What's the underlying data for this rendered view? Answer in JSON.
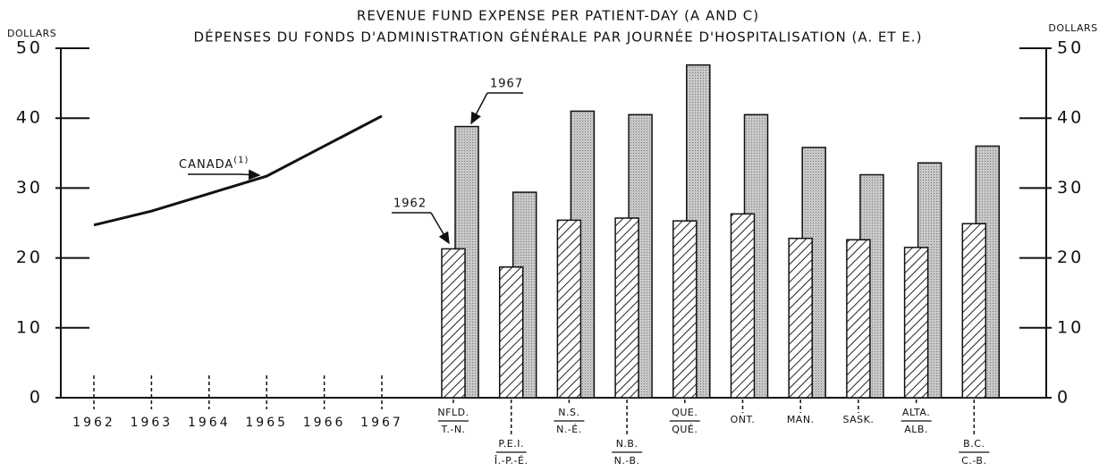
{
  "chart_data": [
    {
      "type": "line",
      "title": "REVENUE FUND EXPENSE PER PATIENT-DAY (A AND C)",
      "subtitle": "DÉPENSES DU FONDS D'ADMINISTRATION GÉNÉRALE PAR JOURNÉE D'HOSPITALISATION (A. ET E.)",
      "ylabel": "DOLLARS",
      "x": [
        1962,
        1963,
        1964,
        1965,
        1966,
        1967
      ],
      "series": [
        {
          "name": "CANADA",
          "note": "(1)",
          "color": "#111111",
          "values": [
            24.7,
            26.7,
            29.2,
            31.7,
            36.0,
            40.3
          ]
        }
      ],
      "ylim": [
        0,
        50
      ],
      "yticks": [
        0,
        10,
        20,
        30,
        40,
        50
      ]
    },
    {
      "type": "bar",
      "y2label": "DOLLARS",
      "categories": [
        [
          "NFLD.",
          "T.-N."
        ],
        [
          "P.E.I.",
          "Î.-P.-É."
        ],
        [
          "N.S.",
          "N.-É."
        ],
        [
          "N.B.",
          "N.-B."
        ],
        [
          "QUE.",
          "QUÉ."
        ],
        [
          "ONT."
        ],
        [
          "MAN."
        ],
        [
          "SASK."
        ],
        [
          "ALTA.",
          "ALB."
        ],
        [
          "B.C.",
          "C.-B."
        ]
      ],
      "series": [
        {
          "name": "1962",
          "color": "#222222",
          "values": [
            21.3,
            18.7,
            25.4,
            25.7,
            25.3,
            26.3,
            22.8,
            22.6,
            21.5,
            24.9
          ]
        },
        {
          "name": "1967",
          "color": "#999999",
          "values": [
            38.8,
            29.4,
            41.0,
            40.5,
            47.6,
            40.5,
            35.8,
            31.9,
            33.6,
            36.0
          ]
        }
      ],
      "ylim": [
        0,
        50
      ],
      "yticks": [
        0,
        10,
        20,
        30,
        40,
        50
      ]
    }
  ]
}
